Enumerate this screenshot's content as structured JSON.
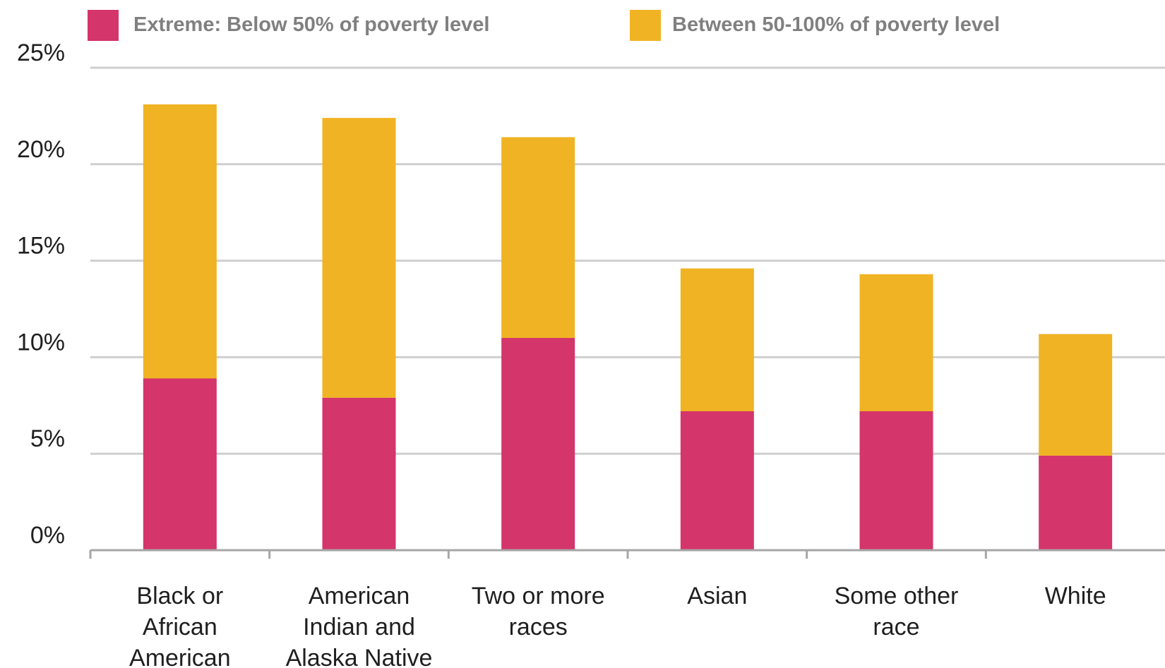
{
  "chart_data": {
    "type": "bar",
    "stacked": true,
    "categories": [
      [
        "Black or",
        "African",
        "American"
      ],
      [
        "American",
        "Indian and",
        "Alaska Native"
      ],
      [
        "Two or more",
        "races"
      ],
      [
        "Asian"
      ],
      [
        "Some other",
        "race"
      ],
      [
        "White"
      ]
    ],
    "series": [
      {
        "name": "Extreme: Below 50% of poverty level",
        "color": "#D4356A",
        "values": [
          8.9,
          7.9,
          11.0,
          7.2,
          7.2,
          4.9
        ]
      },
      {
        "name": "Between 50-100% of poverty level",
        "color": "#F0B323",
        "values": [
          14.2,
          14.5,
          10.4,
          7.4,
          7.1,
          6.3
        ]
      }
    ],
    "ylim": [
      0,
      25
    ],
    "yticks": [
      "0%",
      "5%",
      "10%",
      "15%",
      "20%",
      "25%"
    ],
    "grid": true,
    "legend_position": "top",
    "colors": {
      "grid": "#CFCFCF",
      "axis": "#A6A6A6",
      "text": "#1F1F1F",
      "legend_text": "#808080"
    }
  }
}
